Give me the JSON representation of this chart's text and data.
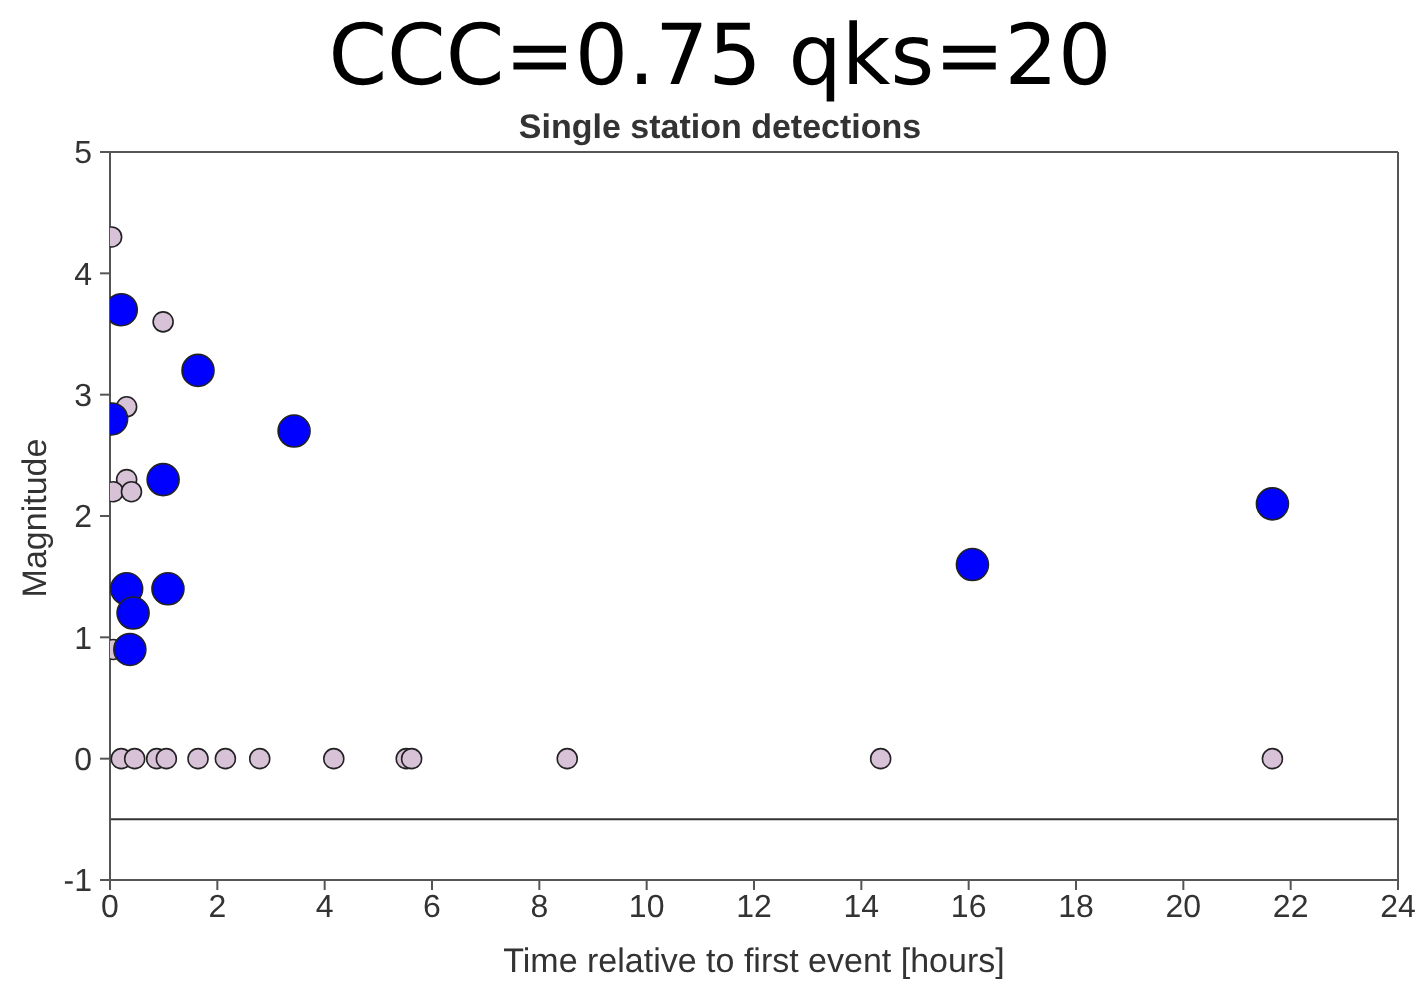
{
  "chart_data": {
    "type": "scatter",
    "title": "CCC=0.75  qks=20",
    "subtitle": "Single station detections",
    "xlabel": "Time relative to first event [hours]",
    "ylabel": "Magnitude",
    "series": [
      {
        "color": "#d8c2d8",
        "x": [
          0.03,
          0.99,
          0.31,
          0.31,
          0.06,
          0.4,
          0.06,
          0.21,
          0.46,
          0.87,
          1.05,
          1.64,
          2.15,
          2.79,
          4.17,
          5.52,
          5.62,
          8.52,
          14.36,
          21.66
        ],
        "values": [
          4.3,
          3.6,
          2.9,
          2.3,
          2.2,
          2.2,
          0.9,
          0,
          0,
          0,
          0,
          0,
          0,
          0,
          0,
          0,
          0,
          0,
          0,
          0
        ]
      },
      {
        "color": "#0000ff",
        "x": [
          0.21,
          1.64,
          0.03,
          3.43,
          0.99,
          0.31,
          1.08,
          0.43,
          0.37,
          16.07,
          21.66
        ],
        "values": [
          3.7,
          3.2,
          2.8,
          2.7,
          2.3,
          1.4,
          1.4,
          1.2,
          0.9,
          1.6,
          2.1
        ]
      }
    ],
    "xlim": [
      0,
      24
    ],
    "xticks": [
      0,
      2,
      4,
      6,
      8,
      10,
      12,
      14,
      16,
      18,
      20,
      22,
      24
    ],
    "ylim": [
      -1,
      5
    ],
    "yticks": [
      -1,
      0,
      1,
      2,
      3,
      4,
      5
    ],
    "ref_lines": [
      {
        "axis": "y",
        "value": -0.5,
        "color": "#333333"
      }
    ],
    "marker": "circle",
    "grid": false
  }
}
